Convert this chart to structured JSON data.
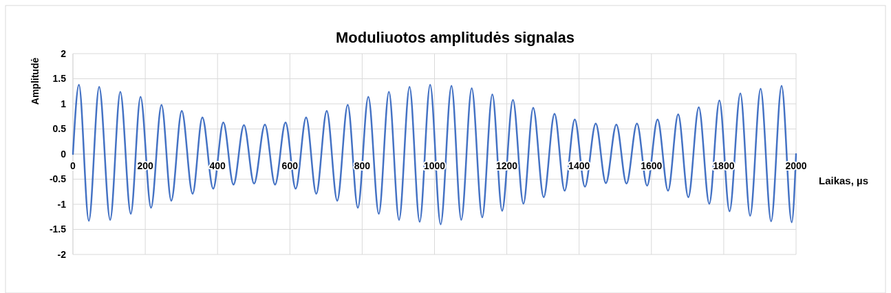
{
  "chart_data": {
    "type": "line",
    "title": "Moduliuotos amplitudės signalas",
    "xlabel": "Laikas, µs",
    "ylabel": "Amplitudė",
    "xlim": [
      0,
      2000
    ],
    "xticks": [
      0,
      200,
      400,
      600,
      800,
      1000,
      1200,
      1400,
      1600,
      1800,
      2000
    ],
    "ylim": [
      -2,
      2
    ],
    "yticks": [
      -2,
      -1.5,
      -1,
      -0.5,
      0,
      0.5,
      1,
      1.5,
      2
    ],
    "grid": true,
    "marker": "none",
    "line_style": "solid",
    "series": [
      {
        "color": "#4472c4",
        "x": [
          0,
          16.6,
          44,
          72.6,
          103,
          131,
          160,
          187,
          216,
          245,
          272,
          301,
          331,
          358,
          388,
          416,
          444,
          473,
          501,
          531,
          559,
          588,
          616,
          645,
          673,
          702,
          731,
          760,
          788,
          817,
          846,
          874,
          902,
          931,
          959,
          988,
          1017,
          1047,
          1074,
          1103,
          1132,
          1160,
          1187,
          1217,
          1246,
          1273,
          1302,
          1332,
          1360,
          1388,
          1416,
          1446,
          1474,
          1503,
          1531,
          1560,
          1588,
          1617,
          1646,
          1674,
          1702,
          1731,
          1760,
          1788,
          1816,
          1846,
          1873,
          1902,
          1931,
          1960,
          1988,
          2000
        ],
        "values": [
          0,
          1.38,
          -1.33,
          1.34,
          -1.31,
          1.24,
          -1.19,
          1.14,
          -1.07,
          0.98,
          -0.93,
          0.86,
          -0.79,
          0.73,
          -0.69,
          0.63,
          -0.61,
          0.58,
          -0.59,
          0.59,
          -0.61,
          0.63,
          -0.69,
          0.73,
          -0.79,
          0.86,
          -0.93,
          0.98,
          -1.07,
          1.14,
          -1.19,
          1.24,
          -1.31,
          1.34,
          -1.35,
          1.38,
          -1.4,
          1.36,
          -1.31,
          1.31,
          -1.26,
          1.19,
          -1.13,
          1.08,
          -0.99,
          0.92,
          -0.86,
          0.8,
          -0.73,
          0.69,
          -0.65,
          0.61,
          -0.58,
          0.59,
          -0.59,
          0.61,
          -0.63,
          0.69,
          -0.73,
          0.79,
          -0.86,
          0.93,
          -0.99,
          1.07,
          -1.14,
          1.21,
          -1.23,
          1.3,
          -1.34,
          1.36,
          -1.36,
          0
        ]
      }
    ]
  }
}
